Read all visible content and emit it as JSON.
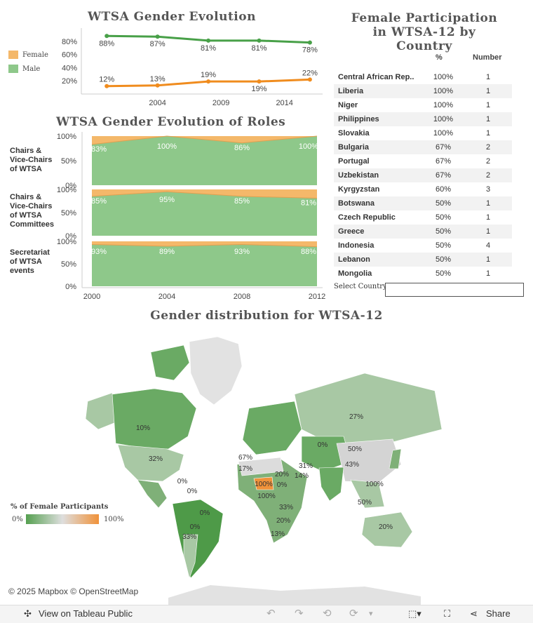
{
  "titles": {
    "evolution": "WTSA Gender Evolution",
    "roles": "WTSA Gender Evolution of Roles",
    "participation": "Female Participation in WTSA-12 by Country",
    "map": "Gender distribution for WTSA-12"
  },
  "colors": {
    "female": "#f4b86a",
    "female_line": "#f08c1e",
    "male": "#8ec88a",
    "male_line": "#48a048"
  },
  "legend": {
    "female": "Female",
    "male": "Male"
  },
  "chart_data": [
    {
      "type": "line",
      "title": "WTSA Gender Evolution",
      "x": [
        2000,
        2004,
        2008,
        2012,
        2016
      ],
      "xticks": [
        2004,
        2009,
        2014
      ],
      "yticks": [
        "20%",
        "40%",
        "60%",
        "80%"
      ],
      "ylim": [
        0,
        100
      ],
      "series": [
        {
          "name": "Male",
          "values": [
            88,
            87,
            81,
            81,
            78
          ],
          "labels": [
            "88%",
            "87%",
            "81%",
            "81%",
            "78%"
          ]
        },
        {
          "name": "Female",
          "values": [
            12,
            13,
            19,
            19,
            22
          ],
          "labels": [
            "12%",
            "13%",
            "19%",
            "19%",
            "22%"
          ]
        }
      ]
    },
    {
      "type": "area",
      "title": "WTSA Gender Evolution of Roles",
      "x": [
        2000,
        2004,
        2008,
        2012
      ],
      "xticks": [
        "2000",
        "2004",
        "2008",
        "2012"
      ],
      "yticks": [
        "0%",
        "50%",
        "100%"
      ],
      "panels": [
        {
          "label": "Chairs & Vice-Chairs of WTSA",
          "male": [
            83,
            100,
            86,
            100
          ],
          "labels": [
            "83%",
            "100%",
            "86%",
            "100%"
          ]
        },
        {
          "label": "Chairs & Vice-Chairs of WTSA Committees",
          "male": [
            85,
            95,
            85,
            81
          ],
          "labels": [
            "85%",
            "95%",
            "85%",
            "81%"
          ]
        },
        {
          "label": "Secretariat of WTSA events",
          "male": [
            93,
            89,
            93,
            88
          ],
          "labels": [
            "93%",
            "89%",
            "93%",
            "88%"
          ]
        }
      ]
    },
    {
      "type": "table",
      "title": "Female Participation in WTSA-12 by Country",
      "columns": [
        "%",
        "Number"
      ],
      "rows": [
        [
          "Central African Rep..",
          "100%",
          "1"
        ],
        [
          "Liberia",
          "100%",
          "1"
        ],
        [
          "Niger",
          "100%",
          "1"
        ],
        [
          "Philippines",
          "100%",
          "1"
        ],
        [
          "Slovakia",
          "100%",
          "1"
        ],
        [
          "Bulgaria",
          "67%",
          "2"
        ],
        [
          "Portugal",
          "67%",
          "2"
        ],
        [
          "Uzbekistan",
          "67%",
          "2"
        ],
        [
          "Kyrgyzstan",
          "60%",
          "3"
        ],
        [
          "Botswana",
          "50%",
          "1"
        ],
        [
          "Czech Republic",
          "50%",
          "1"
        ],
        [
          "Greece",
          "50%",
          "1"
        ],
        [
          "Indonesia",
          "50%",
          "4"
        ],
        [
          "Lebanon",
          "50%",
          "1"
        ],
        [
          "Mongolia",
          "50%",
          "1"
        ]
      ]
    }
  ],
  "filter": {
    "label": "Select Country",
    "value": ""
  },
  "map": {
    "labels": [
      "27%",
      "10%",
      "32%",
      "0%",
      "0%",
      "0%",
      "0%",
      "33%",
      "20%",
      "50%",
      "43%",
      "100%",
      "50%",
      "20%",
      "67%",
      "17%",
      "31%",
      "14%",
      "100%",
      "0%",
      "13%",
      "33%",
      "20%",
      "0%",
      "100%"
    ],
    "legend_title": "% of Female Participants",
    "legend_min": "0%",
    "legend_max": "100%",
    "attribution": "© 2025 Mapbox © OpenStreetMap"
  },
  "toolbar": {
    "view_label": "View on Tableau Public",
    "share_label": "Share"
  }
}
